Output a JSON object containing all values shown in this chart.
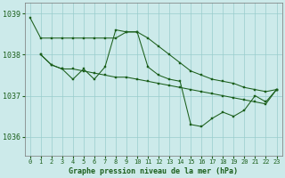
{
  "background_color": "#cceaea",
  "grid_color": "#99cccc",
  "line_color": "#1a5e1a",
  "title": "Graphe pression niveau de la mer (hPa)",
  "xlim": [
    -0.5,
    23.5
  ],
  "ylim": [
    1035.55,
    1039.25
  ],
  "yticks": [
    1036,
    1037,
    1038,
    1039
  ],
  "xticks": [
    0,
    1,
    2,
    3,
    4,
    5,
    6,
    7,
    8,
    9,
    10,
    11,
    12,
    13,
    14,
    15,
    16,
    17,
    18,
    19,
    20,
    21,
    22,
    23
  ],
  "s1_x": [
    0,
    1,
    2,
    3,
    4,
    5,
    6,
    7,
    8,
    9,
    10,
    11,
    12,
    13,
    14,
    15,
    16,
    17,
    18,
    19,
    20,
    21,
    22,
    23
  ],
  "s1_y": [
    1038.9,
    1038.4,
    1038.4,
    1038.4,
    1038.4,
    1038.4,
    1038.4,
    1038.4,
    1038.4,
    1038.55,
    1038.55,
    1038.4,
    1038.2,
    1038.0,
    1037.8,
    1037.6,
    1037.5,
    1037.4,
    1037.35,
    1037.3,
    1037.2,
    1037.15,
    1037.1,
    1037.15
  ],
  "s2_x": [
    1,
    2,
    3,
    4,
    5,
    6,
    7,
    8,
    9,
    10,
    11,
    12,
    13,
    14,
    15,
    16,
    17,
    18,
    19,
    20,
    21,
    22,
    23
  ],
  "s2_y": [
    1038.0,
    1037.75,
    1037.65,
    1037.65,
    1037.6,
    1037.55,
    1037.5,
    1037.45,
    1037.45,
    1037.4,
    1037.35,
    1037.3,
    1037.25,
    1037.2,
    1037.15,
    1037.1,
    1037.05,
    1037.0,
    1036.95,
    1036.9,
    1036.85,
    1036.8,
    1037.15
  ],
  "s3_x": [
    1,
    2,
    3,
    4,
    5,
    6,
    7,
    8,
    9,
    10,
    11,
    12,
    13,
    14,
    15,
    16,
    17,
    18,
    19,
    20,
    21,
    22,
    23
  ],
  "s3_y": [
    1038.0,
    1037.75,
    1037.65,
    1037.4,
    1037.65,
    1037.4,
    1037.7,
    1038.6,
    1038.55,
    1038.55,
    1037.7,
    1037.5,
    1037.4,
    1037.35,
    1036.3,
    1036.25,
    1036.45,
    1036.6,
    1036.5,
    1036.65,
    1037.0,
    1036.85,
    1037.15
  ]
}
